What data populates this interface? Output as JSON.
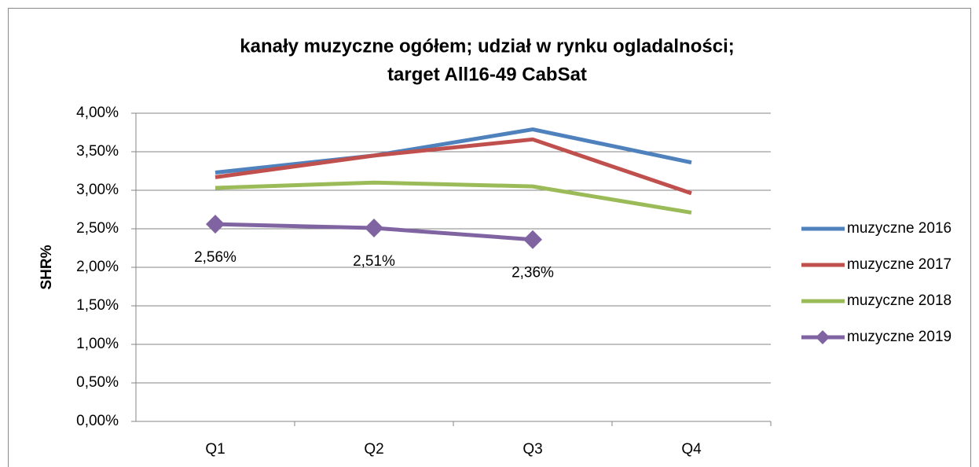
{
  "chart_data": {
    "type": "line",
    "title": [
      "kanały muzyczne ogółem; udział w rynku ogladalności;",
      "target All16-49 CabSat"
    ],
    "y_label": "SHR%",
    "categories": [
      "Q1",
      "Q2",
      "Q3",
      "Q4"
    ],
    "series": [
      {
        "name": "muzyczne 2016",
        "color": "#4f81bd",
        "values": [
          3.23,
          3.45,
          3.79,
          3.36
        ]
      },
      {
        "name": "muzyczne 2017",
        "color": "#c0504d",
        "values": [
          3.17,
          3.45,
          3.66,
          2.96
        ]
      },
      {
        "name": "muzyczne 2018",
        "color": "#9bbb59",
        "values": [
          3.03,
          3.1,
          3.05,
          2.71
        ]
      },
      {
        "name": "muzyczne 2019",
        "color": "#8064a2",
        "marker": "diamond",
        "values": [
          2.56,
          2.51,
          2.36,
          null
        ],
        "value_labels": [
          "2,56%",
          "2,51%",
          "2,36%",
          null
        ]
      }
    ],
    "ylim": [
      0,
      4
    ],
    "yticks": [
      {
        "value": 0,
        "label": "0,00%"
      },
      {
        "value": 0.5,
        "label": "0,50%"
      },
      {
        "value": 1,
        "label": "1,00%"
      },
      {
        "value": 1.5,
        "label": "1,50%"
      },
      {
        "value": 2,
        "label": "2,00%"
      },
      {
        "value": 2.5,
        "label": "2,50%"
      },
      {
        "value": 3,
        "label": "3,00%"
      },
      {
        "value": 3.5,
        "label": "3,50%"
      },
      {
        "value": 4,
        "label": "4,00%"
      }
    ],
    "grid": true,
    "legend": "right"
  }
}
